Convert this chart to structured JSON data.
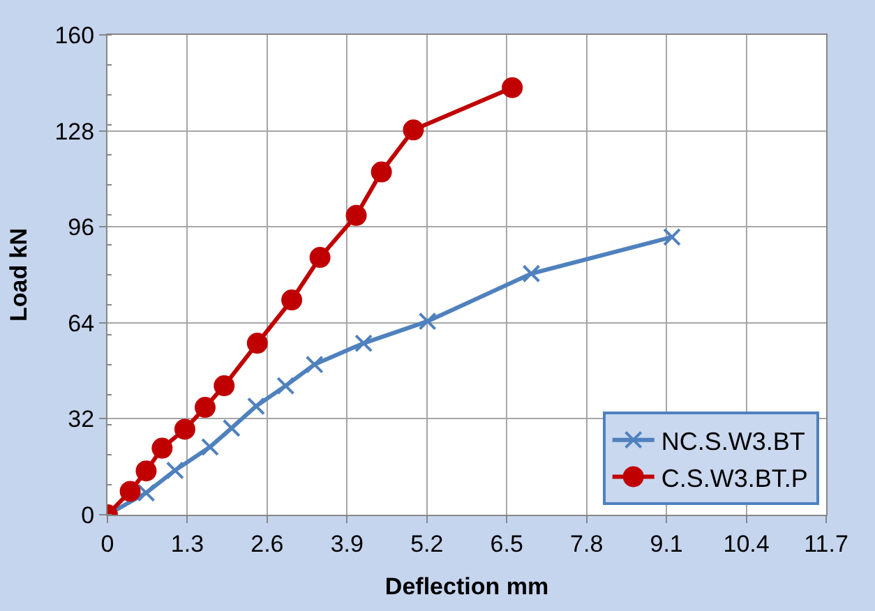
{
  "chart_data": {
    "type": "line",
    "xlabel": "Deflection mm",
    "ylabel": "Load kN",
    "xlim": [
      0,
      11.7
    ],
    "xticks": [
      0,
      1.3,
      2.6,
      3.9,
      5.2,
      6.5,
      7.8,
      9.1,
      10.4,
      11.7
    ],
    "ylim": [
      0,
      160
    ],
    "yticks": [
      0,
      32,
      64,
      96,
      128,
      160
    ],
    "grid": true,
    "legend": "bottom right",
    "series": [
      {
        "name": "NC.S.W3.BT",
        "color": "#4f81bd",
        "marker": "cross",
        "x": [
          0,
          0.63,
          1.1,
          1.67,
          2.02,
          2.42,
          2.9,
          3.37,
          4.17,
          5.21,
          6.9,
          9.19
        ],
        "values": [
          0,
          7.3,
          14.8,
          22.6,
          28.9,
          36.2,
          43,
          50.1,
          57.2,
          64.5,
          80.4,
          92.6
        ]
      },
      {
        "name": "C.S.W3.BT.P",
        "color": "#c00000",
        "marker": "circle",
        "x": [
          0,
          0.37,
          0.63,
          0.89,
          1.26,
          1.59,
          1.9,
          2.44,
          3.0,
          3.46,
          4.05,
          4.46,
          4.98,
          6.59
        ],
        "values": [
          0,
          7.8,
          14.6,
          22.2,
          28.5,
          35.8,
          43,
          57.2,
          71.6,
          85.8,
          99.8,
          114.3,
          128.3,
          142.4
        ]
      }
    ]
  }
}
